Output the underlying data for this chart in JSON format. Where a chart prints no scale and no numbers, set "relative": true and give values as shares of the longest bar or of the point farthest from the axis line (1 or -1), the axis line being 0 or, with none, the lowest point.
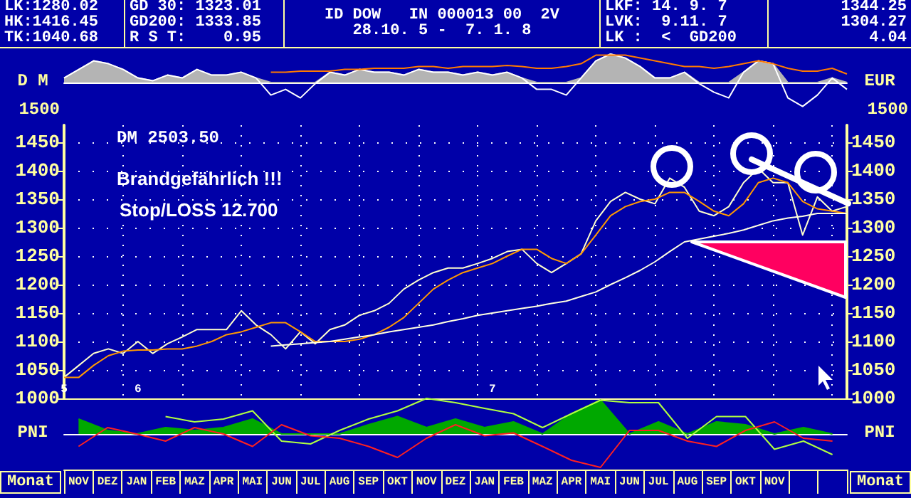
{
  "chart_data": [
    {
      "type": "area",
      "relative": true,
      "ylabel": "D M",
      "y2label": "EUR",
      "grid": false,
      "marker": "none",
      "line_style": "solid",
      "categories": [
        null,
        null,
        null,
        null,
        null,
        null,
        null,
        null,
        null,
        null,
        null,
        null,
        null,
        null,
        null,
        null,
        null,
        null,
        null,
        null,
        null,
        null,
        null,
        null,
        null,
        null,
        null,
        null,
        null,
        null,
        null,
        null,
        null,
        null,
        null,
        null,
        null,
        null,
        null,
        null,
        null,
        null,
        null,
        null,
        null,
        null,
        null,
        null,
        null,
        null,
        null,
        null,
        null,
        null
      ],
      "annotations": [
        "LK:1280.02",
        "HK:1416.45",
        "TK:1040.68",
        "GD 30: 1323.01",
        "GD200: 1333.85",
        "R S T:    0.95",
        "ID DOW   IN 000013 00  2V",
        "28.10. 5 -  7. 1. 8",
        "LKF: 14. 9. 7",
        "LVK:  9.11. 7",
        "LK :  <  GD200",
        "1344.25",
        "1304.27",
        "4.04",
        "1500"
      ],
      "series": [
        {
          "color": "#b4b4b4",
          "values": [
            0.16,
            0.46,
            0.76,
            0.66,
            0.46,
            0.16,
            0.06,
            0.26,
            0.16,
            0.46,
            0.26,
            0.26,
            0.36,
            0.16,
            0,
            0,
            0,
            0,
            0.36,
            0.26,
            0.46,
            0.36,
            0.36,
            0.26,
            0.46,
            0.36,
            0.36,
            0.26,
            0.36,
            0.26,
            0.36,
            0.16,
            0,
            0,
            0,
            0.16,
            0.76,
            1,
            0.86,
            0.56,
            0.16,
            0.16,
            0.36,
            0,
            0,
            0,
            0.36,
            0.76,
            0.66,
            0,
            0,
            0,
            0.16,
            0
          ]
        },
        {
          "type": "line",
          "color": "#ffffff",
          "values": [
            0.16,
            0.46,
            0.76,
            0.66,
            0.46,
            0.16,
            0.06,
            0.26,
            0.16,
            0.46,
            0.26,
            0.26,
            0.36,
            0.16,
            -0.44,
            -0.24,
            -0.54,
            -0.04,
            0.36,
            0.26,
            0.46,
            0.36,
            0.36,
            0.26,
            0.46,
            0.36,
            0.36,
            0.26,
            0.36,
            0.26,
            0.36,
            0.16,
            -0.24,
            -0.24,
            -0.44,
            0.16,
            0.76,
            1,
            0.86,
            0.56,
            0.16,
            0.16,
            0.36,
            -0.04,
            -0.34,
            -0.54,
            0.36,
            0.76,
            0.66,
            -0.54,
            -0.84,
            -0.44,
            0.16,
            -0.24
          ]
        },
        {
          "type": "line",
          "color": "#ff7a00",
          "values": [
            null,
            null,
            null,
            null,
            null,
            null,
            null,
            null,
            null,
            null,
            null,
            null,
            null,
            null,
            0.36,
            0.36,
            0.4,
            0.4,
            0.4,
            0.46,
            0.46,
            0.5,
            0.5,
            0.5,
            0.56,
            0.56,
            0.5,
            0.56,
            0.56,
            0.56,
            0.6,
            0.56,
            0.5,
            0.5,
            0.56,
            0.66,
            0.96,
            0.96,
            0.96,
            0.86,
            0.76,
            0.66,
            0.56,
            0.56,
            0.5,
            0.56,
            0.66,
            0.76,
            0.66,
            0.5,
            0.4,
            0.4,
            0.5,
            0.3
          ]
        }
      ]
    },
    {
      "type": "line",
      "ylim": [
        1000,
        1480
      ],
      "yticks": [
        1000,
        1050,
        1100,
        1150,
        1200,
        1250,
        1300,
        1350,
        1400,
        1450
      ],
      "y2lim": [
        1000,
        1480
      ],
      "y2ticks": [
        1000,
        1050,
        1100,
        1150,
        1200,
        1250,
        1300,
        1350,
        1400,
        1450
      ],
      "grid": true,
      "marker": "none",
      "line_style": "solid",
      "categories": [
        "5",
        null,
        null,
        null,
        null,
        "6",
        null,
        null,
        null,
        null,
        null,
        null,
        null,
        null,
        null,
        null,
        null,
        null,
        null,
        null,
        null,
        null,
        null,
        null,
        null,
        null,
        null,
        null,
        null,
        "7",
        null,
        null,
        null,
        null,
        null,
        null,
        null,
        null,
        null,
        null,
        null,
        null,
        null,
        null,
        null,
        null,
        null,
        null,
        null,
        null,
        null,
        null,
        null,
        null
      ],
      "annotations": [
        "DM 2503.50",
        "Brandgefährlich !!!",
        "Stop/LOSS 12.700"
      ],
      "series": [
        {
          "color": "#ffffcc",
          "values": [
            1037,
            1058,
            1079,
            1087,
            1079,
            1100,
            1079,
            1096,
            1108,
            1121,
            1121,
            1121,
            1154,
            1129,
            1112,
            1087,
            1117,
            1096,
            1121,
            1129,
            1146,
            1154,
            1167,
            1192,
            1208,
            1221,
            1229,
            1229,
            1237,
            1246,
            1258,
            1262,
            1237,
            1221,
            1237,
            1254,
            1312,
            1346,
            1362,
            1350,
            1342,
            1387,
            1371,
            1329,
            1321,
            1337,
            1379,
            1404,
            1379,
            1379,
            1287,
            1354,
            1329,
            1337
          ]
        },
        {
          "color": "#ff9900",
          "values": [
            1037,
            1037,
            1058,
            1075,
            1083,
            1085,
            1085,
            1087,
            1087,
            1092,
            1100,
            1112,
            1117,
            1125,
            1133,
            1133,
            1117,
            1100,
            1100,
            1100,
            1104,
            1112,
            1125,
            1142,
            1167,
            1192,
            1208,
            1221,
            1229,
            1237,
            1250,
            1262,
            1262,
            1246,
            1237,
            1254,
            1287,
            1321,
            1337,
            1346,
            1350,
            1362,
            1362,
            1346,
            1329,
            1321,
            1342,
            1379,
            1387,
            1379,
            1346,
            1333,
            1329,
            1325
          ]
        },
        {
          "color": "#ffffe0",
          "values": [
            null,
            null,
            null,
            null,
            null,
            null,
            null,
            null,
            null,
            null,
            null,
            null,
            null,
            null,
            1092,
            1094,
            1096,
            1098,
            1100,
            1104,
            1108,
            1112,
            1117,
            1121,
            1125,
            1129,
            1135,
            1140,
            1146,
            1150,
            1154,
            1158,
            1162,
            1167,
            1171,
            1179,
            1187,
            1200,
            1212,
            1225,
            1240,
            1258,
            1275,
            1280,
            1285,
            1290,
            1296,
            1304,
            1312,
            1317,
            1320,
            1325,
            1325,
            1325
          ]
        }
      ]
    },
    {
      "type": "area",
      "relative": true,
      "ylabel": "PNI",
      "y2label": "PNI",
      "xlabel": "Monat",
      "grid": false,
      "marker": "none",
      "line_style": "solid",
      "categories": [
        "NOV",
        "DEZ",
        "JAN",
        "FEB",
        "MAZ",
        "APR",
        "MAI",
        "JUN",
        "JUL",
        "AUG",
        "SEP",
        "OKT",
        "NOV",
        "DEZ",
        "JAN",
        "FEB",
        "MAZ",
        "APR",
        "MAI",
        "JUN",
        "JUL",
        "AUG",
        "SEP",
        "OKT",
        "NOV",
        null,
        null
      ],
      "series": [
        {
          "color": "#00a800",
          "values": [
            0.42,
            0.1,
            0,
            0.18,
            0.1,
            0.18,
            0.42,
            0,
            0,
            0,
            0.26,
            0.49,
            0.18,
            0.42,
            0.18,
            0.34,
            0,
            0.57,
            0.95,
            0,
            0.34,
            0,
            0.34,
            0.26,
            0,
            0.18,
            0
          ]
        },
        {
          "type": "line",
          "color": "#b0ff40",
          "values": [
            null,
            null,
            null,
            0.49,
            0.34,
            0.42,
            0.65,
            -0.2,
            -0.28,
            0.1,
            0.42,
            0.65,
            1,
            0.88,
            0.72,
            0.57,
            0.18,
            0.57,
            0.95,
            0.88,
            0.88,
            -0.12,
            0.49,
            0.49,
            -0.43,
            -0.2,
            -0.58
          ]
        },
        {
          "type": "line",
          "color": "#ff2020",
          "values": [
            -0.35,
            0.18,
            0,
            -0.2,
            0.18,
            0,
            -0.35,
            0.26,
            -0.05,
            -0.12,
            -0.35,
            -0.66,
            -0.12,
            0.26,
            -0.05,
            0.03,
            -0.35,
            -0.74,
            -0.94,
            0.1,
            0.1,
            -0.2,
            -0.35,
            0.1,
            0.34,
            -0.12,
            -0.2
          ]
        }
      ]
    }
  ]
}
